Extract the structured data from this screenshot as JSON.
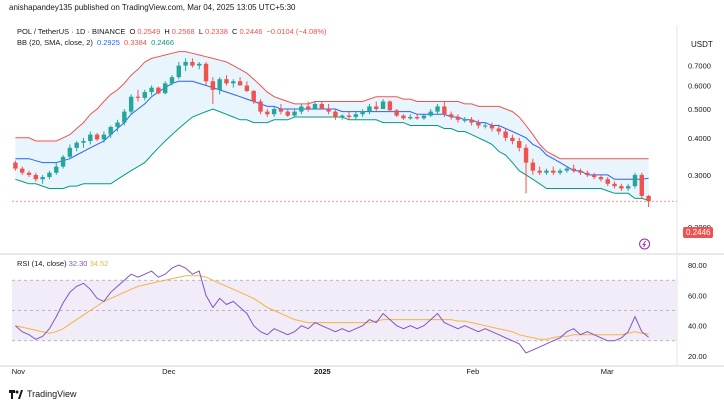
{
  "header": {
    "publish_line": "anishapandey135 published on TradingView.com, Mar 04, 2025 13:05 UTC+5:30",
    "symbol": "POL / TetherUS · 1D · BINANCE",
    "open_label": "O",
    "open": "0.2549",
    "high_label": "H",
    "high": "0.2568",
    "low_label": "L",
    "low": "0.2338",
    "close_label": "C",
    "close": "0.2446",
    "change": "−0.0104 (−4.08%)",
    "bb_label": "BB (20, SMA, close, 2)",
    "bb_basis": "0.2925",
    "bb_upper": "0.3384",
    "bb_lower": "0.2466",
    "currency": "USDT",
    "last_price": "0.2446"
  },
  "rsi_panel": {
    "label": "RSI (14, close)",
    "rsi": "32.30",
    "rsi_ma": "34.52"
  },
  "footer": {
    "brand": "TradingView"
  },
  "colors": {
    "up": "#26a69a",
    "down": "#ef5350",
    "bb_basis": "#2962ff",
    "bb_upper": "#ef5350",
    "bb_lower": "#089981",
    "bb_fill": "#e3f2fd",
    "rsi_line": "#7e57c2",
    "rsi_ma": "#f5b342",
    "rsi_band": "#ede7f6"
  },
  "chart_data": [
    {
      "type": "candlestick",
      "title": "POL / TetherUS · 1D · BINANCE",
      "y_axis": {
        "ticks": [
          "0.7000",
          "0.6000",
          "0.5000",
          "0.4000",
          "0.3000",
          "0.2000"
        ],
        "values": [
          0.7,
          0.6,
          0.5,
          0.4,
          0.3,
          0.2
        ],
        "range": [
          0.165,
          0.79
        ],
        "scale": "log"
      },
      "x_axis": {
        "ticks": [
          "Nov",
          "Dec",
          "2025",
          "Feb",
          "Mar"
        ],
        "bold_tick": "2025"
      },
      "candles": [
        [
          0.33,
          0.335,
          0.31,
          0.315
        ],
        [
          0.315,
          0.32,
          0.3,
          0.305
        ],
        [
          0.305,
          0.31,
          0.295,
          0.3
        ],
        [
          0.3,
          0.305,
          0.285,
          0.29
        ],
        [
          0.29,
          0.3,
          0.28,
          0.295
        ],
        [
          0.295,
          0.31,
          0.29,
          0.305
        ],
        [
          0.305,
          0.33,
          0.3,
          0.32
        ],
        [
          0.32,
          0.35,
          0.315,
          0.345
        ],
        [
          0.345,
          0.38,
          0.34,
          0.37
        ],
        [
          0.37,
          0.39,
          0.36,
          0.385
        ],
        [
          0.385,
          0.4,
          0.37,
          0.39
        ],
        [
          0.39,
          0.42,
          0.38,
          0.41
        ],
        [
          0.41,
          0.415,
          0.39,
          0.395
        ],
        [
          0.395,
          0.42,
          0.385,
          0.41
        ],
        [
          0.41,
          0.44,
          0.4,
          0.435
        ],
        [
          0.435,
          0.46,
          0.42,
          0.45
        ],
        [
          0.45,
          0.5,
          0.44,
          0.49
        ],
        [
          0.49,
          0.56,
          0.48,
          0.55
        ],
        [
          0.55,
          0.58,
          0.53,
          0.545
        ],
        [
          0.545,
          0.58,
          0.535,
          0.57
        ],
        [
          0.57,
          0.6,
          0.555,
          0.59
        ],
        [
          0.59,
          0.595,
          0.56,
          0.565
        ],
        [
          0.565,
          0.62,
          0.56,
          0.61
        ],
        [
          0.61,
          0.65,
          0.6,
          0.64
        ],
        [
          0.64,
          0.72,
          0.63,
          0.7
        ],
        [
          0.7,
          0.74,
          0.67,
          0.72
        ],
        [
          0.72,
          0.74,
          0.69,
          0.7
        ],
        [
          0.7,
          0.72,
          0.68,
          0.71
        ],
        [
          0.71,
          0.72,
          0.6,
          0.62
        ],
        [
          0.62,
          0.64,
          0.52,
          0.58
        ],
        [
          0.58,
          0.64,
          0.56,
          0.63
        ],
        [
          0.63,
          0.65,
          0.6,
          0.61
        ],
        [
          0.61,
          0.63,
          0.59,
          0.62
        ],
        [
          0.62,
          0.64,
          0.6,
          0.6
        ],
        [
          0.6,
          0.62,
          0.57,
          0.575
        ],
        [
          0.575,
          0.58,
          0.52,
          0.53
        ],
        [
          0.53,
          0.54,
          0.48,
          0.49
        ],
        [
          0.49,
          0.5,
          0.47,
          0.48
        ],
        [
          0.48,
          0.51,
          0.47,
          0.5
        ],
        [
          0.5,
          0.52,
          0.48,
          0.49
        ],
        [
          0.49,
          0.5,
          0.47,
          0.475
        ],
        [
          0.475,
          0.5,
          0.47,
          0.49
        ],
        [
          0.49,
          0.52,
          0.48,
          0.51
        ],
        [
          0.51,
          0.53,
          0.49,
          0.5
        ],
        [
          0.5,
          0.53,
          0.5,
          0.52
        ],
        [
          0.52,
          0.53,
          0.5,
          0.5
        ],
        [
          0.5,
          0.52,
          0.48,
          0.49
        ],
        [
          0.49,
          0.5,
          0.46,
          0.47
        ],
        [
          0.47,
          0.48,
          0.46,
          0.475
        ],
        [
          0.475,
          0.49,
          0.46,
          0.47
        ],
        [
          0.47,
          0.49,
          0.46,
          0.48
        ],
        [
          0.48,
          0.5,
          0.47,
          0.49
        ],
        [
          0.49,
          0.52,
          0.48,
          0.51
        ],
        [
          0.51,
          0.53,
          0.49,
          0.5
        ],
        [
          0.5,
          0.54,
          0.5,
          0.53
        ],
        [
          0.53,
          0.535,
          0.49,
          0.495
        ],
        [
          0.495,
          0.5,
          0.47,
          0.475
        ],
        [
          0.475,
          0.48,
          0.46,
          0.465
        ],
        [
          0.465,
          0.48,
          0.46,
          0.47
        ],
        [
          0.47,
          0.48,
          0.46,
          0.465
        ],
        [
          0.465,
          0.48,
          0.46,
          0.475
        ],
        [
          0.475,
          0.5,
          0.47,
          0.49
        ],
        [
          0.49,
          0.52,
          0.48,
          0.51
        ],
        [
          0.51,
          0.53,
          0.47,
          0.48
        ],
        [
          0.48,
          0.49,
          0.46,
          0.47
        ],
        [
          0.47,
          0.48,
          0.45,
          0.46
        ],
        [
          0.46,
          0.47,
          0.45,
          0.46
        ],
        [
          0.46,
          0.47,
          0.44,
          0.45
        ],
        [
          0.45,
          0.46,
          0.43,
          0.44
        ],
        [
          0.44,
          0.45,
          0.43,
          0.44
        ],
        [
          0.44,
          0.45,
          0.42,
          0.43
        ],
        [
          0.43,
          0.44,
          0.41,
          0.42
        ],
        [
          0.42,
          0.43,
          0.39,
          0.4
        ],
        [
          0.4,
          0.41,
          0.38,
          0.39
        ],
        [
          0.39,
          0.4,
          0.36,
          0.37
        ],
        [
          0.37,
          0.38,
          0.26,
          0.33
        ],
        [
          0.33,
          0.34,
          0.3,
          0.31
        ],
        [
          0.31,
          0.32,
          0.3,
          0.305
        ],
        [
          0.305,
          0.315,
          0.3,
          0.31
        ],
        [
          0.31,
          0.32,
          0.3,
          0.305
        ],
        [
          0.305,
          0.315,
          0.3,
          0.31
        ],
        [
          0.31,
          0.32,
          0.305,
          0.315
        ],
        [
          0.315,
          0.325,
          0.305,
          0.31
        ],
        [
          0.31,
          0.315,
          0.3,
          0.305
        ],
        [
          0.305,
          0.31,
          0.295,
          0.3
        ],
        [
          0.3,
          0.305,
          0.29,
          0.295
        ],
        [
          0.295,
          0.3,
          0.285,
          0.29
        ],
        [
          0.29,
          0.295,
          0.275,
          0.28
        ],
        [
          0.28,
          0.285,
          0.27,
          0.275
        ],
        [
          0.275,
          0.28,
          0.265,
          0.27
        ],
        [
          0.27,
          0.28,
          0.265,
          0.275
        ],
        [
          0.275,
          0.305,
          0.27,
          0.3
        ],
        [
          0.3,
          0.305,
          0.25,
          0.255
        ],
        [
          0.2549,
          0.2568,
          0.2338,
          0.2446
        ]
      ],
      "bb_upper": [
        0.4,
        0.4,
        0.4,
        0.39,
        0.39,
        0.39,
        0.39,
        0.4,
        0.41,
        0.43,
        0.45,
        0.48,
        0.5,
        0.53,
        0.56,
        0.58,
        0.61,
        0.65,
        0.68,
        0.72,
        0.74,
        0.75,
        0.76,
        0.77,
        0.78,
        0.78,
        0.77,
        0.76,
        0.75,
        0.74,
        0.73,
        0.72,
        0.7,
        0.68,
        0.66,
        0.63,
        0.6,
        0.57,
        0.55,
        0.54,
        0.53,
        0.52,
        0.52,
        0.52,
        0.53,
        0.53,
        0.53,
        0.53,
        0.53,
        0.53,
        0.53,
        0.53,
        0.54,
        0.55,
        0.55,
        0.55,
        0.55,
        0.54,
        0.54,
        0.53,
        0.53,
        0.53,
        0.53,
        0.53,
        0.53,
        0.53,
        0.52,
        0.52,
        0.51,
        0.51,
        0.51,
        0.51,
        0.5,
        0.49,
        0.47,
        0.44,
        0.41,
        0.38,
        0.36,
        0.35,
        0.34,
        0.34,
        0.34,
        0.34,
        0.34,
        0.34,
        0.34,
        0.34,
        0.34,
        0.34,
        0.34,
        0.34,
        0.34,
        0.34
      ],
      "bb_basis": [
        0.34,
        0.34,
        0.34,
        0.335,
        0.33,
        0.33,
        0.33,
        0.335,
        0.34,
        0.35,
        0.36,
        0.37,
        0.38,
        0.39,
        0.41,
        0.43,
        0.45,
        0.48,
        0.5,
        0.52,
        0.55,
        0.57,
        0.59,
        0.61,
        0.62,
        0.62,
        0.62,
        0.61,
        0.6,
        0.59,
        0.58,
        0.57,
        0.56,
        0.55,
        0.54,
        0.53,
        0.52,
        0.51,
        0.51,
        0.5,
        0.5,
        0.5,
        0.5,
        0.5,
        0.5,
        0.5,
        0.5,
        0.5,
        0.49,
        0.49,
        0.49,
        0.49,
        0.49,
        0.49,
        0.49,
        0.49,
        0.49,
        0.49,
        0.49,
        0.48,
        0.48,
        0.48,
        0.48,
        0.48,
        0.47,
        0.47,
        0.46,
        0.46,
        0.45,
        0.45,
        0.44,
        0.44,
        0.43,
        0.42,
        0.41,
        0.4,
        0.38,
        0.37,
        0.35,
        0.34,
        0.33,
        0.32,
        0.31,
        0.31,
        0.3,
        0.3,
        0.3,
        0.3,
        0.29,
        0.29,
        0.29,
        0.29,
        0.29,
        0.2925
      ],
      "bb_lower": [
        0.29,
        0.285,
        0.28,
        0.28,
        0.275,
        0.27,
        0.27,
        0.27,
        0.275,
        0.275,
        0.28,
        0.28,
        0.28,
        0.28,
        0.28,
        0.29,
        0.3,
        0.31,
        0.32,
        0.33,
        0.35,
        0.37,
        0.39,
        0.41,
        0.43,
        0.45,
        0.47,
        0.48,
        0.49,
        0.5,
        0.49,
        0.48,
        0.47,
        0.46,
        0.46,
        0.45,
        0.45,
        0.45,
        0.46,
        0.46,
        0.46,
        0.47,
        0.47,
        0.47,
        0.47,
        0.47,
        0.47,
        0.47,
        0.47,
        0.46,
        0.46,
        0.46,
        0.46,
        0.46,
        0.45,
        0.45,
        0.45,
        0.45,
        0.44,
        0.44,
        0.44,
        0.44,
        0.44,
        0.43,
        0.43,
        0.42,
        0.42,
        0.41,
        0.4,
        0.39,
        0.38,
        0.36,
        0.35,
        0.33,
        0.31,
        0.3,
        0.29,
        0.28,
        0.27,
        0.27,
        0.27,
        0.27,
        0.27,
        0.27,
        0.27,
        0.27,
        0.27,
        0.265,
        0.26,
        0.26,
        0.26,
        0.25,
        0.25,
        0.2466
      ]
    },
    {
      "type": "line",
      "title": "RSI (14, close)",
      "y_axis": {
        "ticks": [
          "80.00",
          "60.00",
          "40.00",
          "20.00"
        ],
        "values": [
          80,
          60,
          40,
          20
        ],
        "range": [
          16,
          86
        ]
      },
      "bands": {
        "upper": 70,
        "middle": 50,
        "lower": 30
      },
      "series": [
        {
          "name": "RSI",
          "values": [
            40,
            36,
            34,
            31,
            33,
            38,
            46,
            55,
            62,
            66,
            68,
            64,
            58,
            56,
            62,
            66,
            70,
            74,
            72,
            74,
            76,
            72,
            74,
            78,
            80,
            78,
            74,
            76,
            60,
            52,
            58,
            54,
            56,
            52,
            48,
            40,
            36,
            34,
            38,
            36,
            34,
            36,
            40,
            38,
            42,
            40,
            38,
            36,
            38,
            36,
            38,
            40,
            44,
            42,
            48,
            44,
            40,
            38,
            40,
            38,
            40,
            44,
            48,
            42,
            40,
            38,
            40,
            38,
            36,
            38,
            36,
            34,
            32,
            30,
            28,
            22,
            24,
            26,
            28,
            30,
            32,
            36,
            38,
            34,
            36,
            34,
            32,
            30,
            30,
            32,
            36,
            46,
            36,
            32.3
          ]
        },
        {
          "name": "RSI-based MA",
          "values": [
            40,
            39,
            38,
            37,
            36,
            35,
            36,
            38,
            41,
            44,
            47,
            50,
            53,
            56,
            58,
            60,
            62,
            64,
            66,
            67,
            68,
            69,
            70,
            71,
            72,
            73,
            73,
            73,
            72,
            70,
            68,
            66,
            64,
            62,
            60,
            58,
            55,
            52,
            50,
            48,
            46,
            44,
            43,
            42,
            42,
            42,
            42,
            42,
            42,
            42,
            42,
            42,
            42,
            43,
            44,
            44,
            44,
            44,
            44,
            44,
            44,
            44,
            44,
            44,
            44,
            43,
            43,
            42,
            41,
            40,
            39,
            38,
            37,
            36,
            34,
            33,
            32,
            31,
            31,
            32,
            33,
            33,
            34,
            34,
            34,
            34,
            34,
            34,
            34,
            34,
            35,
            36,
            35,
            34.52
          ]
        }
      ],
      "x_axis": {
        "ticks": [
          "Nov",
          "Dec",
          "2025",
          "Feb",
          "Mar"
        ]
      }
    }
  ]
}
